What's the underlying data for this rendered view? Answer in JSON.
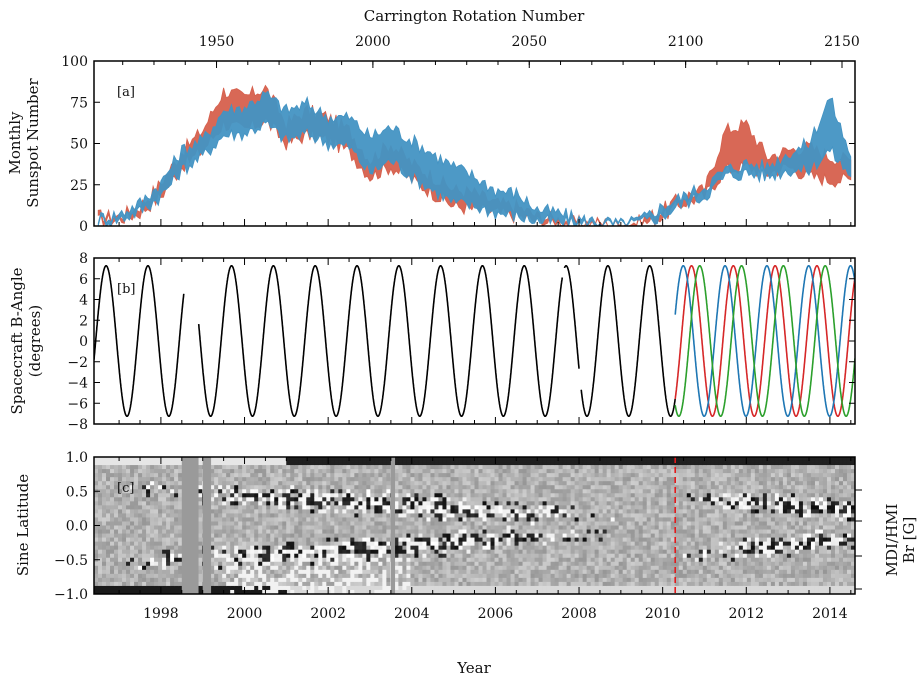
{
  "chart_data": [
    {
      "type": "area",
      "panel_tag": "[a]",
      "ylabel_lines": [
        "Monthly",
        "Sunspot Number"
      ],
      "top_xlabel": "Carrington Rotation Number",
      "top_ticks": [
        1950,
        2000,
        2050,
        2100,
        2150
      ],
      "ylim": [
        0,
        100
      ],
      "yticks": [
        0,
        25,
        50,
        75,
        100
      ],
      "xlim": [
        1996.4,
        2014.6
      ],
      "series": [
        {
          "color": "#d6604d",
          "x": [
            1996.5,
            1997,
            1997.5,
            1998,
            1998.5,
            1999,
            1999.5,
            2000,
            2000.5,
            2001,
            2001.5,
            2002,
            2002.5,
            2003,
            2003.5,
            2004,
            2004.5,
            2005,
            2005.5,
            2006,
            2006.5,
            2007,
            2007.5,
            2008,
            2008.5,
            2009,
            2009.5,
            2010,
            2010.5,
            2011,
            2011.5,
            2012,
            2012.5,
            2013,
            2013.5,
            2014,
            2014.5
          ],
          "upper": [
            6,
            6,
            12,
            26,
            45,
            58,
            82,
            78,
            84,
            62,
            70,
            66,
            58,
            40,
            50,
            38,
            30,
            22,
            20,
            14,
            12,
            6,
            4,
            2,
            2,
            1,
            3,
            10,
            18,
            22,
            58,
            62,
            42,
            46,
            48,
            42,
            40
          ],
          "lower": [
            3,
            4,
            8,
            18,
            36,
            46,
            62,
            58,
            64,
            50,
            55,
            52,
            45,
            30,
            36,
            28,
            20,
            12,
            10,
            8,
            6,
            3,
            2,
            1,
            1,
            0,
            1,
            6,
            14,
            18,
            34,
            36,
            32,
            36,
            30,
            28,
            28
          ]
        },
        {
          "color": "#4393c3",
          "x": [
            1996.5,
            1997,
            1997.5,
            1998,
            1998.5,
            1999,
            1999.5,
            2000,
            2000.5,
            2001,
            2001.5,
            2002,
            2002.5,
            2003,
            2003.5,
            2004,
            2004.5,
            2005,
            2005.5,
            2006,
            2006.5,
            2007,
            2007.5,
            2008,
            2008.5,
            2009,
            2009.5,
            2010,
            2010.5,
            2011,
            2011.5,
            2012,
            2012.5,
            2013,
            2013.5,
            2014,
            2014.5
          ],
          "upper": [
            5,
            7,
            14,
            26,
            46,
            52,
            70,
            72,
            80,
            70,
            74,
            66,
            66,
            54,
            60,
            52,
            44,
            36,
            30,
            22,
            20,
            10,
            8,
            4,
            3,
            1,
            4,
            12,
            18,
            24,
            34,
            38,
            36,
            44,
            50,
            78,
            42
          ],
          "lower": [
            3,
            4,
            9,
            18,
            34,
            42,
            55,
            56,
            62,
            52,
            56,
            50,
            48,
            32,
            40,
            30,
            22,
            14,
            12,
            8,
            6,
            3,
            2,
            1,
            1,
            0,
            2,
            6,
            14,
            18,
            30,
            32,
            30,
            34,
            34,
            46,
            30
          ]
        }
      ]
    },
    {
      "type": "line",
      "panel_tag": "[b]",
      "ylabel_lines": [
        "Spacecraft B-Angle",
        "(degrees)"
      ],
      "ylim": [
        -8,
        8
      ],
      "yticks": [
        -8,
        -6,
        -4,
        -2,
        0,
        2,
        4,
        6,
        8
      ],
      "amplitude": 7.25,
      "period_years": 1.0,
      "phase_max_year": 1996.69,
      "gaps": [
        [
          1998.55,
          1998.9
        ],
        [
          2007.6,
          2007.65
        ],
        [
          2008.0,
          2008.05
        ]
      ],
      "series": [
        {
          "name": "",
          "color": "#000000",
          "range": [
            1996.4,
            2010.3
          ],
          "phase_shift_days": 0
        },
        {
          "name": "",
          "color": "#d62728",
          "range": [
            2010.3,
            2014.6
          ],
          "phase_shift_days": 0
        },
        {
          "name": "",
          "color": "#1f77b4",
          "range": [
            2010.3,
            2014.6
          ],
          "phase_shift_days": -72
        },
        {
          "name": "",
          "color": "#2ca02c",
          "range": [
            2010.3,
            2014.6
          ],
          "phase_shift_days": 72
        }
      ]
    },
    {
      "type": "heatmap",
      "panel_tag": "[c]",
      "ylabel": "Sine Latitude",
      "right_label_lines": [
        "MDI/HMI",
        "Br [G]"
      ],
      "ylim": [
        -1.0,
        1.0
      ],
      "yticks": [
        -1.0,
        -0.5,
        0.0,
        0.5,
        1.0
      ],
      "xlabel": "Year",
      "xticks": [
        1998,
        2000,
        2002,
        2004,
        2006,
        2008,
        2010,
        2012,
        2014
      ],
      "instrument_switch_year": 2010.3,
      "data_gaps": [
        [
          1998.5,
          1998.9
        ],
        [
          1999.0,
          1999.2
        ],
        [
          2003.5,
          2003.6
        ]
      ]
    }
  ]
}
